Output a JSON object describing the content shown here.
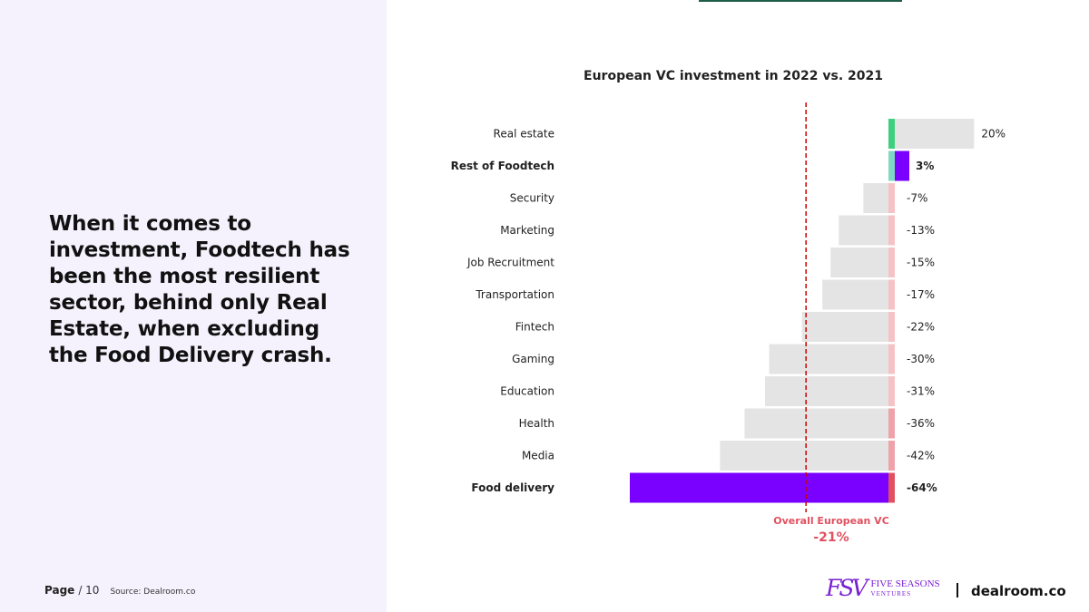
{
  "headline": "When it comes to investment, Foodtech has been the most resilient sector, behind only Real Estate, when excluding the Food Delivery crash.",
  "footer": {
    "page_label": "Page",
    "page_total": "/ 10",
    "source": "Source: Dealroom.co"
  },
  "logos": {
    "fsv_mark": "FSV",
    "fsv_line1": "FIVE SEASONS",
    "fsv_line2": "VENTURES",
    "dealroom": "dealroom.co"
  },
  "overall": {
    "label": "Overall European VC",
    "value_label": "-21%"
  },
  "colors": {
    "background_bar": "#e4e4e4",
    "highlight_bar": "#7a00ff",
    "positive_marker": "#3ecf7f",
    "negative_marker_light": "#f5c2c6",
    "negative_marker_strong": "#e0505f",
    "overall_line": "#cc0000",
    "left_panel": "#f5f2fd"
  },
  "chart_data": {
    "type": "bar",
    "orientation": "horizontal",
    "title": "European VC investment in 2022 vs. 2021",
    "categories": [
      "Real estate",
      "Rest of Foodtech",
      "Security",
      "Marketing",
      "Job Recruitment",
      "Transportation",
      "Fintech",
      "Gaming",
      "Education",
      "Health",
      "Media",
      "Food delivery"
    ],
    "values": [
      20,
      3,
      -7,
      -13,
      -15,
      -17,
      -22,
      -30,
      -31,
      -36,
      -42,
      -64
    ],
    "value_labels": [
      "20%",
      "3%",
      "-7%",
      "-13%",
      "-15%",
      "-17%",
      "-22%",
      "-30%",
      "-31%",
      "-36%",
      "-42%",
      "-64%"
    ],
    "highlighted": [
      "Rest of Foodtech",
      "Food delivery"
    ],
    "reference_line": -21,
    "xlim": [
      -67,
      23
    ],
    "xlabel": "",
    "ylabel": "",
    "grid": false,
    "legend": "none"
  }
}
